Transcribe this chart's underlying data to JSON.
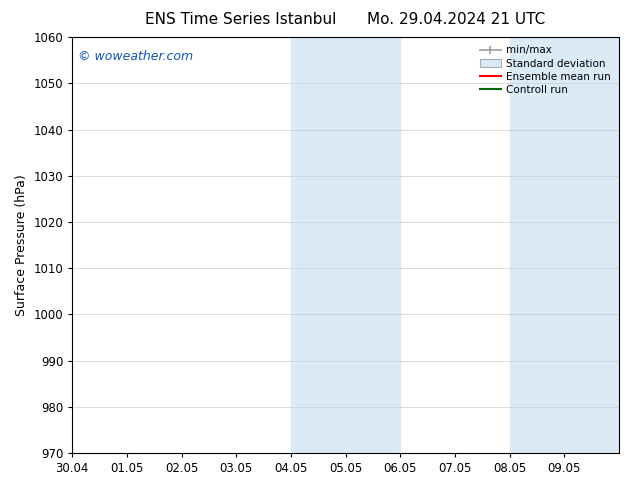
{
  "title_left": "ENS Time Series Istanbul",
  "title_right": "Mo. 29.04.2024 21 UTC",
  "ylabel": "Surface Pressure (hPa)",
  "ylim": [
    970,
    1060
  ],
  "yticks": [
    970,
    980,
    990,
    1000,
    1010,
    1020,
    1030,
    1040,
    1050,
    1060
  ],
  "xlim_start": 0,
  "xlim_end": 10,
  "xtick_labels": [
    "30.04",
    "01.05",
    "02.05",
    "03.05",
    "04.05",
    "05.05",
    "06.05",
    "07.05",
    "08.05",
    "09.05"
  ],
  "xtick_positions": [
    0,
    1,
    2,
    3,
    4,
    5,
    6,
    7,
    8,
    9
  ],
  "shaded_regions": [
    {
      "x_start": 4,
      "x_end": 6
    },
    {
      "x_start": 8,
      "x_end": 10
    }
  ],
  "shaded_color": "#daeaf7",
  "watermark_text": "© woweather.com",
  "watermark_color": "#1155bb",
  "background_color": "#ffffff",
  "grid_color": "#cccccc",
  "title_fontsize": 11,
  "tick_fontsize": 8.5,
  "legend_fontsize": 7.5,
  "ylabel_fontsize": 9,
  "watermark_fontsize": 9
}
